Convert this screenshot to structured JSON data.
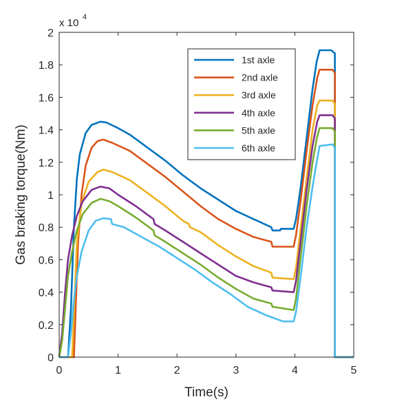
{
  "chart_data": {
    "type": "line",
    "xlabel": "Time(s)",
    "ylabel": "Gas braking torque(Nm)",
    "y_multiplier": "x 10",
    "y_exponent": "4",
    "xlim": [
      0,
      5
    ],
    "ylim": [
      0,
      2
    ],
    "x_ticks": [
      "0",
      "1",
      "2",
      "3",
      "4",
      "5"
    ],
    "y_ticks": [
      "0",
      "0.2",
      "0.4",
      "0.6",
      "0.8",
      "1",
      "1.2",
      "1.4",
      "1.6",
      "1.8",
      "2"
    ],
    "grid": false,
    "legend_position": "top-right",
    "series": [
      {
        "name": "1st axle",
        "color": "#0072BD",
        "points": [
          [
            0,
            0
          ],
          [
            0.15,
            0
          ],
          [
            0.2,
            0.3
          ],
          [
            0.25,
            0.8
          ],
          [
            0.3,
            1.1
          ],
          [
            0.35,
            1.25
          ],
          [
            0.45,
            1.38
          ],
          [
            0.55,
            1.43
          ],
          [
            0.7,
            1.45
          ],
          [
            0.8,
            1.445
          ],
          [
            1.0,
            1.41
          ],
          [
            1.2,
            1.37
          ],
          [
            1.5,
            1.29
          ],
          [
            1.8,
            1.21
          ],
          [
            2.1,
            1.12
          ],
          [
            2.4,
            1.04
          ],
          [
            2.7,
            0.97
          ],
          [
            3.0,
            0.9
          ],
          [
            3.3,
            0.85
          ],
          [
            3.6,
            0.8
          ],
          [
            3.62,
            0.78
          ],
          [
            3.75,
            0.78
          ],
          [
            3.76,
            0.79
          ],
          [
            3.98,
            0.79
          ],
          [
            4.02,
            0.85
          ],
          [
            4.1,
            1.05
          ],
          [
            4.2,
            1.35
          ],
          [
            4.3,
            1.65
          ],
          [
            4.37,
            1.82
          ],
          [
            4.42,
            1.89
          ],
          [
            4.62,
            1.89
          ],
          [
            4.68,
            1.87
          ],
          [
            4.68,
            0
          ],
          [
            5,
            0
          ]
        ]
      },
      {
        "name": "2nd axle",
        "color": "#D95319",
        "points": [
          [
            0,
            0
          ],
          [
            0.25,
            0
          ],
          [
            0.28,
            0.3
          ],
          [
            0.32,
            0.7
          ],
          [
            0.38,
            1.0
          ],
          [
            0.45,
            1.18
          ],
          [
            0.55,
            1.29
          ],
          [
            0.65,
            1.33
          ],
          [
            0.75,
            1.34
          ],
          [
            0.9,
            1.32
          ],
          [
            1.2,
            1.27
          ],
          [
            1.5,
            1.19
          ],
          [
            1.8,
            1.11
          ],
          [
            2.1,
            1.02
          ],
          [
            2.4,
            0.93
          ],
          [
            2.7,
            0.85
          ],
          [
            3.0,
            0.79
          ],
          [
            3.3,
            0.74
          ],
          [
            3.6,
            0.71
          ],
          [
            3.62,
            0.68
          ],
          [
            3.76,
            0.68
          ],
          [
            3.98,
            0.68
          ],
          [
            4.02,
            0.75
          ],
          [
            4.1,
            0.97
          ],
          [
            4.2,
            1.27
          ],
          [
            4.3,
            1.55
          ],
          [
            4.38,
            1.72
          ],
          [
            4.42,
            1.77
          ],
          [
            4.64,
            1.77
          ],
          [
            4.68,
            1.75
          ],
          [
            4.68,
            0
          ],
          [
            5,
            0
          ]
        ]
      },
      {
        "name": "3rd axle",
        "color": "#EDB120",
        "points": [
          [
            0,
            0
          ],
          [
            0.22,
            0
          ],
          [
            0.26,
            0.35
          ],
          [
            0.3,
            0.7
          ],
          [
            0.38,
            0.95
          ],
          [
            0.5,
            1.08
          ],
          [
            0.65,
            1.14
          ],
          [
            0.75,
            1.155
          ],
          [
            0.9,
            1.14
          ],
          [
            1.2,
            1.09
          ],
          [
            1.5,
            1.01
          ],
          [
            1.8,
            0.93
          ],
          [
            2.1,
            0.84
          ],
          [
            2.2,
            0.82
          ],
          [
            2.22,
            0.8
          ],
          [
            2.4,
            0.77
          ],
          [
            2.7,
            0.69
          ],
          [
            3.0,
            0.62
          ],
          [
            3.3,
            0.56
          ],
          [
            3.6,
            0.52
          ],
          [
            3.62,
            0.49
          ],
          [
            3.98,
            0.48
          ],
          [
            4.02,
            0.55
          ],
          [
            4.1,
            0.8
          ],
          [
            4.2,
            1.1
          ],
          [
            4.3,
            1.4
          ],
          [
            4.38,
            1.55
          ],
          [
            4.42,
            1.58
          ],
          [
            4.64,
            1.58
          ],
          [
            4.68,
            1.56
          ],
          [
            4.68,
            0
          ],
          [
            5,
            0
          ]
        ]
      },
      {
        "name": "4th axle",
        "color": "#7E2F8E",
        "points": [
          [
            0,
            0
          ],
          [
            0.05,
            0.15
          ],
          [
            0.1,
            0.4
          ],
          [
            0.15,
            0.6
          ],
          [
            0.22,
            0.75
          ],
          [
            0.3,
            0.87
          ],
          [
            0.4,
            0.96
          ],
          [
            0.55,
            1.03
          ],
          [
            0.7,
            1.05
          ],
          [
            0.85,
            1.04
          ],
          [
            1.0,
            1.0
          ],
          [
            1.3,
            0.93
          ],
          [
            1.6,
            0.85
          ],
          [
            1.62,
            0.82
          ],
          [
            1.8,
            0.78
          ],
          [
            2.1,
            0.71
          ],
          [
            2.4,
            0.64
          ],
          [
            2.7,
            0.57
          ],
          [
            3.0,
            0.5
          ],
          [
            3.3,
            0.46
          ],
          [
            3.6,
            0.43
          ],
          [
            3.62,
            0.41
          ],
          [
            3.98,
            0.4
          ],
          [
            4.02,
            0.47
          ],
          [
            4.1,
            0.72
          ],
          [
            4.2,
            1.03
          ],
          [
            4.3,
            1.3
          ],
          [
            4.38,
            1.45
          ],
          [
            4.42,
            1.49
          ],
          [
            4.64,
            1.49
          ],
          [
            4.68,
            1.47
          ],
          [
            4.68,
            0
          ],
          [
            5,
            0
          ]
        ]
      },
      {
        "name": "5th axle",
        "color": "#77AC30",
        "points": [
          [
            0,
            0
          ],
          [
            0.05,
            0.1
          ],
          [
            0.1,
            0.3
          ],
          [
            0.15,
            0.5
          ],
          [
            0.22,
            0.65
          ],
          [
            0.3,
            0.78
          ],
          [
            0.4,
            0.88
          ],
          [
            0.55,
            0.95
          ],
          [
            0.7,
            0.975
          ],
          [
            0.85,
            0.96
          ],
          [
            1.0,
            0.93
          ],
          [
            1.3,
            0.86
          ],
          [
            1.6,
            0.78
          ],
          [
            1.62,
            0.75
          ],
          [
            1.8,
            0.71
          ],
          [
            2.1,
            0.64
          ],
          [
            2.4,
            0.57
          ],
          [
            2.7,
            0.49
          ],
          [
            3.0,
            0.42
          ],
          [
            3.3,
            0.36
          ],
          [
            3.6,
            0.33
          ],
          [
            3.62,
            0.31
          ],
          [
            3.98,
            0.29
          ],
          [
            4.02,
            0.36
          ],
          [
            4.1,
            0.62
          ],
          [
            4.2,
            0.93
          ],
          [
            4.3,
            1.2
          ],
          [
            4.38,
            1.36
          ],
          [
            4.42,
            1.41
          ],
          [
            4.64,
            1.41
          ],
          [
            4.68,
            1.39
          ],
          [
            4.68,
            0
          ],
          [
            5,
            0
          ]
        ]
      },
      {
        "name": "6th axle",
        "color": "#4DBEEE",
        "points": [
          [
            0,
            0
          ],
          [
            0.15,
            0
          ],
          [
            0.2,
            0.15
          ],
          [
            0.25,
            0.35
          ],
          [
            0.3,
            0.5
          ],
          [
            0.38,
            0.65
          ],
          [
            0.5,
            0.78
          ],
          [
            0.62,
            0.84
          ],
          [
            0.75,
            0.855
          ],
          [
            0.88,
            0.85
          ],
          [
            0.9,
            0.82
          ],
          [
            1.1,
            0.8
          ],
          [
            1.4,
            0.74
          ],
          [
            1.7,
            0.68
          ],
          [
            2.0,
            0.61
          ],
          [
            2.3,
            0.54
          ],
          [
            2.6,
            0.46
          ],
          [
            2.9,
            0.39
          ],
          [
            3.2,
            0.31
          ],
          [
            3.5,
            0.26
          ],
          [
            3.8,
            0.22
          ],
          [
            3.98,
            0.22
          ],
          [
            4.02,
            0.28
          ],
          [
            4.1,
            0.5
          ],
          [
            4.2,
            0.8
          ],
          [
            4.3,
            1.05
          ],
          [
            4.38,
            1.22
          ],
          [
            4.42,
            1.3
          ],
          [
            4.64,
            1.31
          ],
          [
            4.68,
            1.29
          ],
          [
            4.68,
            0
          ],
          [
            5,
            0
          ]
        ]
      }
    ]
  }
}
